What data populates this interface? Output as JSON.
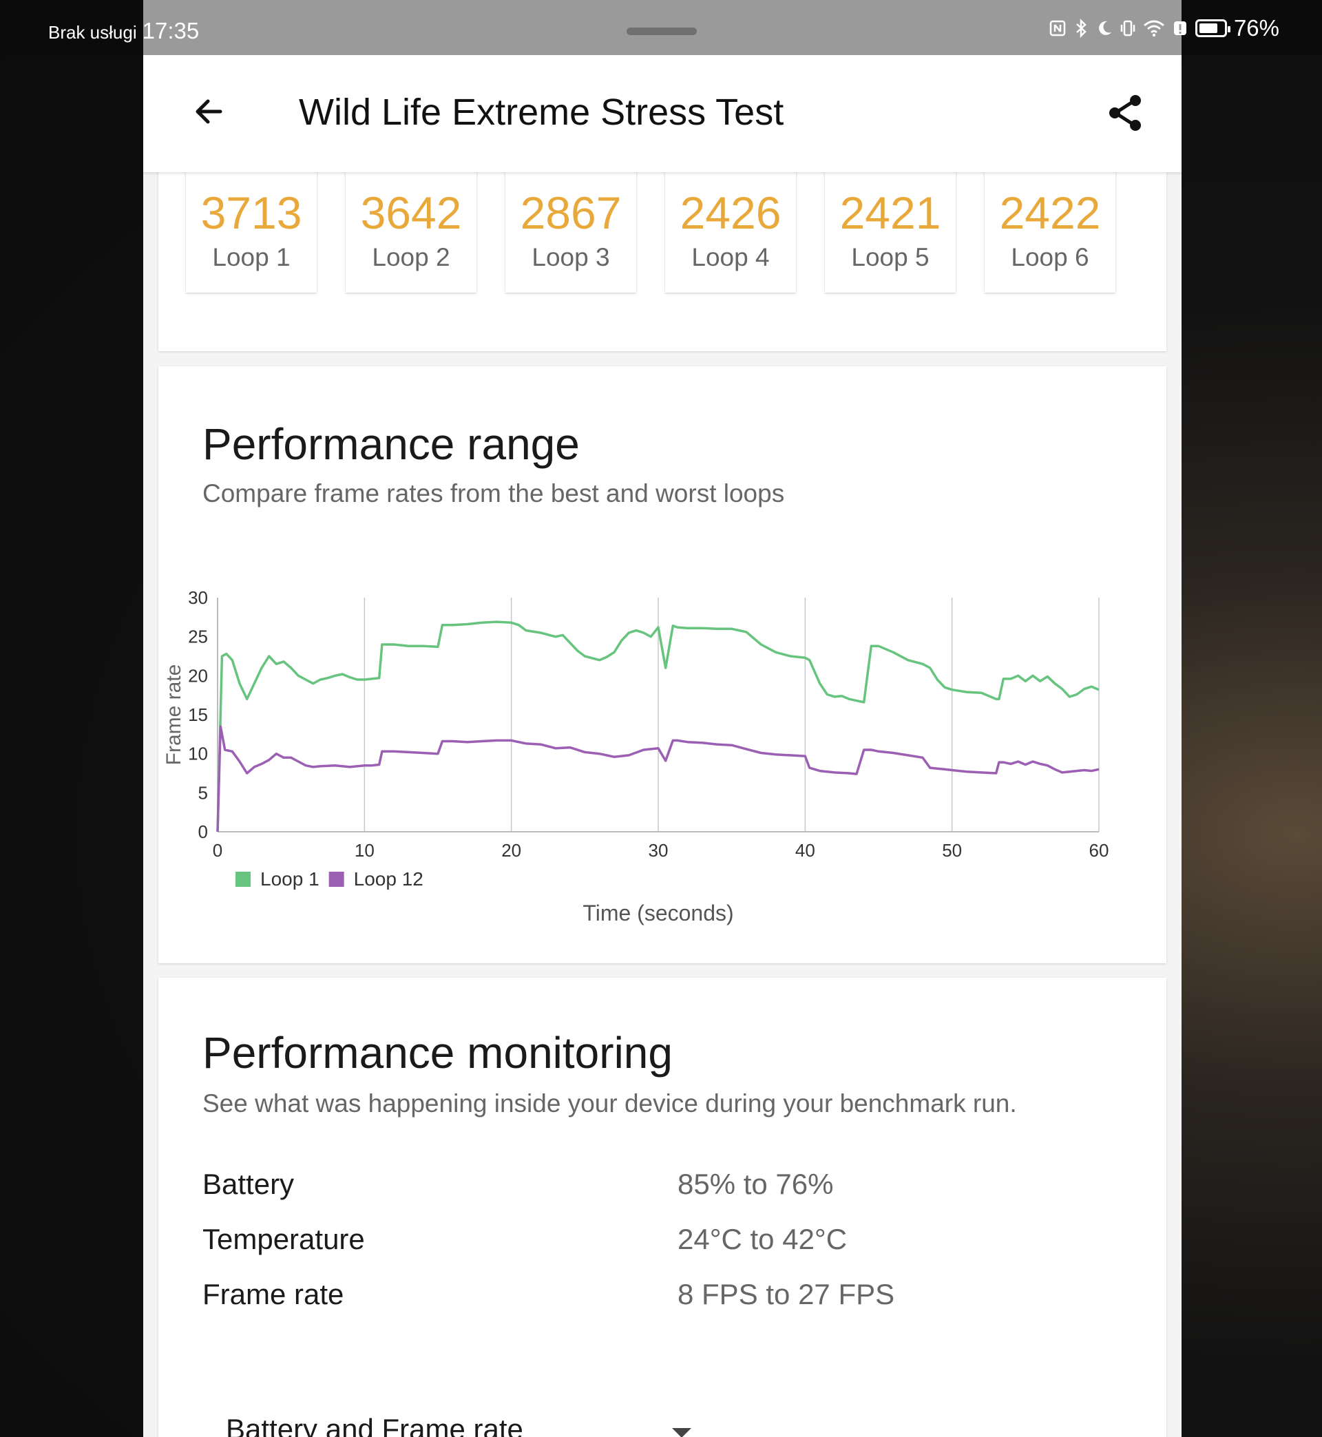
{
  "status_bar": {
    "carrier": "Brak usługi",
    "time": "17:35",
    "battery_percent": "76%",
    "battery_level": 0.76,
    "icons": [
      "nfc-icon",
      "bluetooth-icon",
      "moon-icon",
      "vibrate-icon",
      "wifi-icon",
      "alert-icon",
      "battery-icon"
    ]
  },
  "appbar": {
    "title": "Wild Life Extreme Stress Test",
    "back_icon": "arrow-left-icon",
    "share_icon": "share-icon"
  },
  "loops": [
    {
      "score": "3713",
      "label": "Loop 1"
    },
    {
      "score": "3642",
      "label": "Loop 2"
    },
    {
      "score": "2867",
      "label": "Loop 3"
    },
    {
      "score": "2426",
      "label": "Loop 4"
    },
    {
      "score": "2421",
      "label": "Loop 5"
    },
    {
      "score": "2422",
      "label": "Loop 6"
    }
  ],
  "performance_range": {
    "title": "Performance range",
    "subtitle": "Compare frame rates from the best and worst loops"
  },
  "chart_data": {
    "type": "line",
    "title": "",
    "xlabel": "Time (seconds)",
    "ylabel": "Frame rate",
    "xlim": [
      0,
      60
    ],
    "ylim": [
      0,
      30
    ],
    "xticks": [
      0,
      10,
      20,
      30,
      40,
      50,
      60
    ],
    "yticks": [
      0,
      5,
      10,
      15,
      20,
      25,
      30
    ],
    "grid": "vertical",
    "legend_position": "bottom-left",
    "series": [
      {
        "name": "Loop 1",
        "color": "#66c47e",
        "x": [
          0,
          0.3,
          0.6,
          1,
          1.5,
          2,
          2.5,
          3,
          3.5,
          4,
          4.5,
          5,
          5.5,
          6,
          6.5,
          7,
          7.5,
          8,
          8.5,
          9,
          9.5,
          10,
          10.5,
          11,
          11.2,
          12,
          13,
          14,
          15,
          15.3,
          16,
          17,
          18,
          19,
          20,
          20.5,
          21,
          22,
          23,
          23.5,
          24,
          24.5,
          25,
          26,
          26.5,
          27,
          27.5,
          28,
          28.5,
          29,
          29.5,
          30,
          30.5,
          31,
          31.3,
          32,
          33,
          34,
          35,
          36,
          37,
          38,
          39,
          40,
          40.3,
          41,
          41.5,
          42,
          42.5,
          43,
          43.5,
          44,
          44.5,
          45,
          46,
          47,
          48,
          48.5,
          49,
          49.5,
          50,
          51,
          52,
          53,
          53.2,
          53.5,
          54,
          54.5,
          55,
          55.5,
          56,
          56.5,
          57,
          57.5,
          58,
          58.5,
          59,
          59.5,
          60
        ],
        "y": [
          0,
          22.5,
          22.8,
          22,
          19,
          17,
          19,
          21,
          22.5,
          21.5,
          21.8,
          21,
          20,
          19.5,
          19,
          19.5,
          19.7,
          20,
          20.2,
          19.8,
          19.5,
          19.5,
          19.6,
          19.7,
          24,
          24,
          23.8,
          23.8,
          23.7,
          26.5,
          26.5,
          26.6,
          26.8,
          26.9,
          26.8,
          26.5,
          25.8,
          25.5,
          25,
          25.2,
          24.2,
          23.2,
          22.5,
          22,
          22.4,
          23,
          24.5,
          25.5,
          25.8,
          25.5,
          25,
          26.2,
          21,
          26.4,
          26.2,
          26.1,
          26.1,
          26,
          26,
          25.6,
          24,
          23,
          22.5,
          22.3,
          22,
          19,
          17.6,
          17.3,
          17.4,
          17,
          16.8,
          16.6,
          23.8,
          23.8,
          23,
          22,
          21.5,
          21,
          19.5,
          18.5,
          18.2,
          17.9,
          17.8,
          17,
          17,
          19.6,
          19.6,
          20,
          19.3,
          20,
          19.3,
          19.9,
          19,
          18.3,
          17.3,
          17.6,
          18.3,
          18.6,
          18.2
        ]
      },
      {
        "name": "Loop 12",
        "color": "#9b5fb3",
        "x": [
          0,
          0.2,
          0.5,
          1,
          1.5,
          2,
          2.5,
          3,
          3.5,
          4,
          4.5,
          5,
          5.5,
          6,
          6.5,
          7,
          8,
          9,
          10,
          10.5,
          11,
          11.2,
          12,
          13,
          14,
          15,
          15.3,
          16,
          17,
          18,
          19,
          20,
          21,
          22,
          23,
          24,
          25,
          26,
          27,
          28,
          29,
          29.5,
          30,
          30.5,
          31,
          31.3,
          32,
          33,
          34,
          35,
          36,
          37,
          38,
          39,
          40,
          40.3,
          41,
          42,
          43,
          43.5,
          44,
          44.5,
          45,
          46,
          47,
          48,
          48.5,
          49,
          49.5,
          50,
          51,
          52,
          53,
          53.2,
          53.5,
          54,
          54.5,
          55,
          55.5,
          56,
          56.5,
          57,
          57.5,
          58,
          58.5,
          59,
          59.5,
          60
        ],
        "y": [
          0,
          13.5,
          10.5,
          10.3,
          9,
          7.5,
          8.3,
          8.7,
          9.2,
          10,
          9.5,
          9.5,
          9,
          8.5,
          8.3,
          8.4,
          8.5,
          8.3,
          8.5,
          8.5,
          8.6,
          10.3,
          10.3,
          10.2,
          10.1,
          10,
          11.6,
          11.6,
          11.5,
          11.6,
          11.7,
          11.7,
          11.3,
          11.2,
          10.7,
          10.8,
          10.2,
          10,
          9.6,
          9.8,
          10.5,
          10.6,
          10.7,
          9.1,
          11.7,
          11.7,
          11.5,
          11.4,
          11.2,
          11.1,
          10.6,
          10.1,
          9.9,
          9.8,
          9.7,
          8.2,
          7.8,
          7.6,
          7.5,
          7.4,
          10.5,
          10.5,
          10.3,
          10.1,
          9.8,
          9.5,
          8.2,
          8.1,
          8.0,
          7.9,
          7.7,
          7.6,
          7.5,
          8.9,
          8.9,
          8.7,
          9.0,
          8.6,
          9.0,
          8.7,
          8.5,
          8.0,
          7.6,
          7.7,
          7.8,
          7.9,
          7.8,
          8.0
        ]
      }
    ]
  },
  "performance_monitoring": {
    "title": "Performance monitoring",
    "subtitle": "See what was happening inside your device during your benchmark run.",
    "rows": [
      {
        "label": "Battery",
        "value": "85% to 76%"
      },
      {
        "label": "Temperature",
        "value": "24°C to 42°C"
      },
      {
        "label": "Frame rate",
        "value": "8 FPS to 27 FPS"
      }
    ],
    "dropdown": {
      "selected": "Battery and Frame rate",
      "icon": "dropdown-arrow-icon"
    }
  }
}
